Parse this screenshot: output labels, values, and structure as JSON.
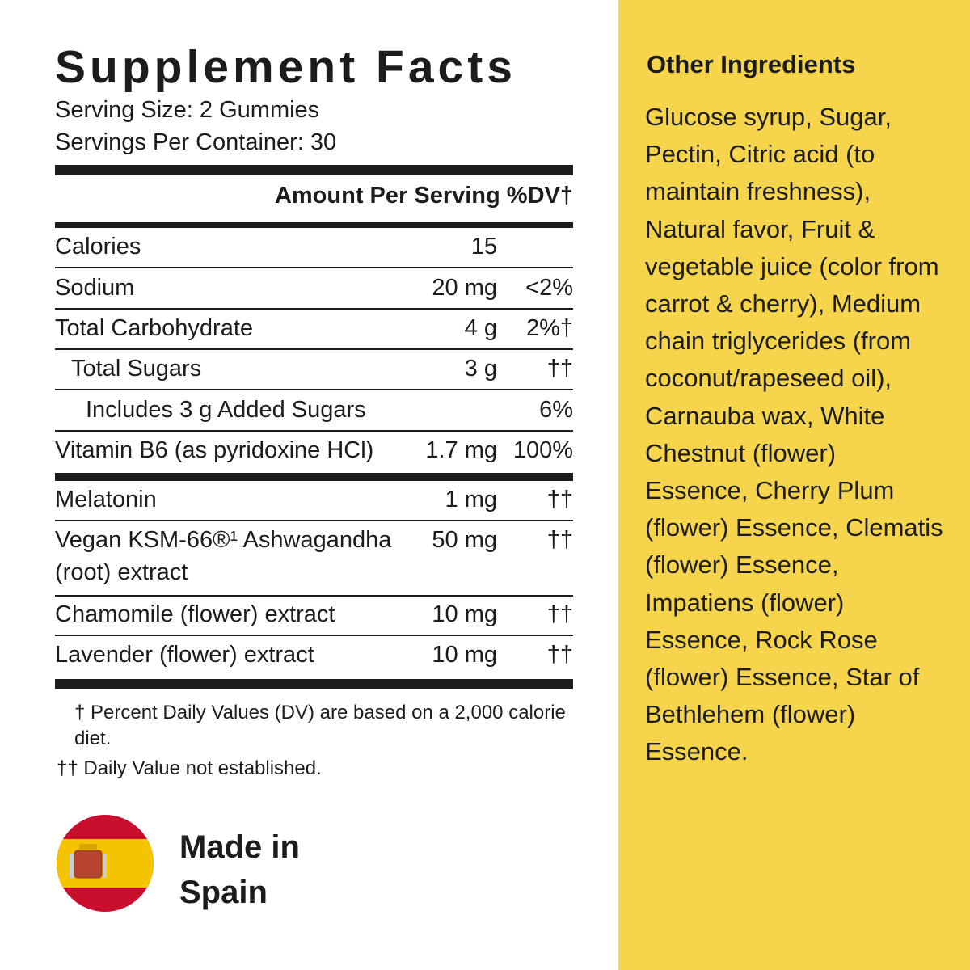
{
  "facts": {
    "title": "Supplement Facts",
    "serving_size": "Serving Size: 2 Gummies",
    "servings_per_container": "Servings Per Container: 30",
    "header": {
      "amount": "Amount Per Serving",
      "dv": "%DV†"
    },
    "rows": [
      {
        "name": "Calories",
        "amount": "15"
      },
      {
        "name": "Sodium",
        "amount": "20 mg",
        "dv": "<2%"
      },
      {
        "name": "Total Carbohydrate",
        "amount": "4 g",
        "dv": "2%†"
      },
      {
        "name": "Total Sugars",
        "amount": "3 g",
        "dv": "††"
      },
      {
        "name": "Includes 3 g Added Sugars",
        "dv": "6%"
      },
      {
        "name": "Vitamin B6 (as pyridoxine HCl)",
        "amount": "1.7 mg",
        "dv": "100%"
      },
      {
        "name": "Melatonin",
        "amount": "1 mg",
        "dv": "††"
      },
      {
        "name": "Vegan KSM-66®¹ Ashwagandha (root) extract",
        "amount": "50 mg",
        "dv": "††"
      },
      {
        "name": "Chamomile (flower) extract",
        "amount": "10 mg",
        "dv": "††"
      },
      {
        "name": "Lavender (flower) extract",
        "amount": "10 mg",
        "dv": "††"
      }
    ],
    "footnotes": [
      "† Percent Daily Values (DV) are based on a 2,000 calorie diet.",
      "†† Daily Value not established."
    ]
  },
  "origin": [
    "Made in",
    "Spain"
  ],
  "other_ingredients": {
    "title": "Other Ingredients",
    "text": "Glucose syrup, Sugar, Pectin, Citric acid (to maintain freshness), Natural favor, Fruit & vegetable juice (color from carrot & cherry), Medium chain triglycerides (from coconut/rapeseed oil), Carnauba wax, White Chestnut (flower) Essence, Cherry Plum (flower) Essence, Clematis (flower) Essence, Impatiens (flower) Essence, Rock Rose (flower) Essence, Star of Bethlehem (flower) Essence."
  }
}
